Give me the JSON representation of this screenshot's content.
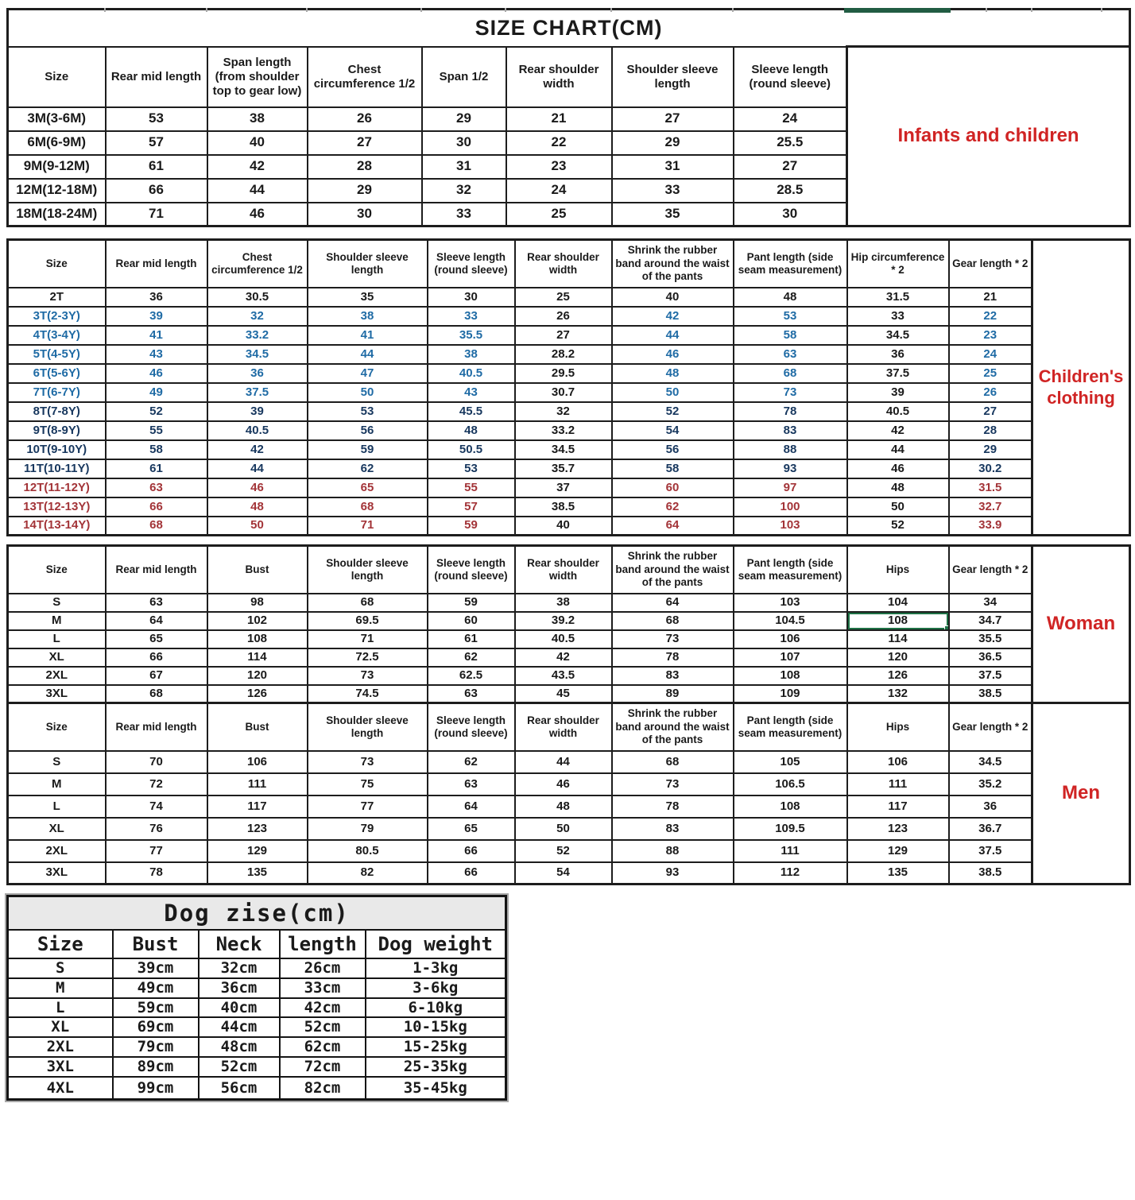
{
  "page_title": "SIZE CHART(CM)",
  "colors": {
    "black": "#1a1a1a",
    "blue": "#1f6ba5",
    "navy": "#17375e",
    "dark_red": "#a33438",
    "label_red": "#d02424",
    "selection_green": "#1e7145",
    "top_bar_green": "#215c43"
  },
  "infants": {
    "label": "Infants and children",
    "headers": [
      "Size",
      "Rear mid length",
      "Span length (from shoulder top to gear low)",
      "Chest circumference 1/2",
      "Span 1/2",
      "Rear shoulder width",
      "Shoulder sleeve length",
      "Sleeve length (round sleeve)"
    ],
    "rows": [
      [
        "3M(3-6M)",
        "53",
        "38",
        "26",
        "29",
        "21",
        "27",
        "24"
      ],
      [
        "6M(6-9M)",
        "57",
        "40",
        "27",
        "30",
        "22",
        "29",
        "25.5"
      ],
      [
        "9M(9-12M)",
        "61",
        "42",
        "28",
        "31",
        "23",
        "31",
        "27"
      ],
      [
        "12M(12-18M)",
        "66",
        "44",
        "29",
        "32",
        "24",
        "33",
        "28.5"
      ],
      [
        "18M(18-24M)",
        "71",
        "46",
        "30",
        "33",
        "25",
        "35",
        "30"
      ]
    ]
  },
  "children": {
    "label": "Children's clothing",
    "headers": [
      "Size",
      "Rear mid length",
      "Chest circumference 1/2",
      "Shoulder sleeve length",
      "Sleeve length (round sleeve)",
      "Rear shoulder width",
      "Shrink the rubber band around the waist of the pants",
      "Pant length (side seam measurement)",
      "Hip circumference * 2",
      "Gear length * 2"
    ],
    "rows": [
      [
        "2T",
        "36",
        "30.5",
        "35",
        "30",
        "25",
        "40",
        "48",
        "31.5",
        "21"
      ],
      [
        "3T(2-3Y)",
        "39",
        "32",
        "38",
        "33",
        "26",
        "42",
        "53",
        "33",
        "22"
      ],
      [
        "4T(3-4Y)",
        "41",
        "33.2",
        "41",
        "35.5",
        "27",
        "44",
        "58",
        "34.5",
        "23"
      ],
      [
        "5T(4-5Y)",
        "43",
        "34.5",
        "44",
        "38",
        "28.2",
        "46",
        "63",
        "36",
        "24"
      ],
      [
        "6T(5-6Y)",
        "46",
        "36",
        "47",
        "40.5",
        "29.5",
        "48",
        "68",
        "37.5",
        "25"
      ],
      [
        "7T(6-7Y)",
        "49",
        "37.5",
        "50",
        "43",
        "30.7",
        "50",
        "73",
        "39",
        "26"
      ],
      [
        "8T(7-8Y)",
        "52",
        "39",
        "53",
        "45.5",
        "32",
        "52",
        "78",
        "40.5",
        "27"
      ],
      [
        "9T(8-9Y)",
        "55",
        "40.5",
        "56",
        "48",
        "33.2",
        "54",
        "83",
        "42",
        "28"
      ],
      [
        "10T(9-10Y)",
        "58",
        "42",
        "59",
        "50.5",
        "34.5",
        "56",
        "88",
        "44",
        "29"
      ],
      [
        "11T(10-11Y)",
        "61",
        "44",
        "62",
        "53",
        "35.7",
        "58",
        "93",
        "46",
        "30.2"
      ],
      [
        "12T(11-12Y)",
        "63",
        "46",
        "65",
        "55",
        "37",
        "60",
        "97",
        "48",
        "31.5"
      ],
      [
        "13T(12-13Y)",
        "66",
        "48",
        "68",
        "57",
        "38.5",
        "62",
        "100",
        "50",
        "32.7"
      ],
      [
        "14T(13-14Y)",
        "68",
        "50",
        "71",
        "59",
        "40",
        "64",
        "103",
        "52",
        "33.9"
      ]
    ],
    "row_colors": [
      "black",
      "blue",
      "blue",
      "blue",
      "blue",
      "blue",
      "navy",
      "navy",
      "navy",
      "navy",
      "dark_red",
      "dark_red",
      "dark_red"
    ],
    "black_columns": [
      5,
      8
    ]
  },
  "woman": {
    "label": "Woman",
    "headers": [
      "Size",
      "Rear mid length",
      "Bust",
      "Shoulder sleeve length",
      "Sleeve length (round sleeve)",
      "Rear shoulder width",
      "Shrink the rubber band around the waist of the pants",
      "Pant length (side seam measurement)",
      "Hips",
      "Gear length * 2"
    ],
    "rows": [
      [
        "S",
        "63",
        "98",
        "68",
        "59",
        "38",
        "64",
        "103",
        "104",
        "34"
      ],
      [
        "M",
        "64",
        "102",
        "69.5",
        "60",
        "39.2",
        "68",
        "104.5",
        "108",
        "34.7"
      ],
      [
        "L",
        "65",
        "108",
        "71",
        "61",
        "40.5",
        "73",
        "106",
        "114",
        "35.5"
      ],
      [
        "XL",
        "66",
        "114",
        "72.5",
        "62",
        "42",
        "78",
        "107",
        "120",
        "36.5"
      ],
      [
        "2XL",
        "67",
        "120",
        "73",
        "62.5",
        "43.5",
        "83",
        "108",
        "126",
        "37.5"
      ],
      [
        "3XL",
        "68",
        "126",
        "74.5",
        "63",
        "45",
        "89",
        "109",
        "132",
        "38.5"
      ]
    ],
    "selected_cell": {
      "row": 1,
      "col": 8
    }
  },
  "men": {
    "label": "Men",
    "headers": [
      "Size",
      "Rear mid length",
      "Bust",
      "Shoulder sleeve length",
      "Sleeve length (round sleeve)",
      "Rear shoulder width",
      "Shrink the rubber band around the waist of the pants",
      "Pant length (side seam measurement)",
      "Hips",
      "Gear length * 2"
    ],
    "rows": [
      [
        "S",
        "70",
        "106",
        "73",
        "62",
        "44",
        "68",
        "105",
        "106",
        "34.5"
      ],
      [
        "M",
        "72",
        "111",
        "75",
        "63",
        "46",
        "73",
        "106.5",
        "111",
        "35.2"
      ],
      [
        "L",
        "74",
        "117",
        "77",
        "64",
        "48",
        "78",
        "108",
        "117",
        "36"
      ],
      [
        "XL",
        "76",
        "123",
        "79",
        "65",
        "50",
        "83",
        "109.5",
        "123",
        "36.7"
      ],
      [
        "2XL",
        "77",
        "129",
        "80.5",
        "66",
        "52",
        "88",
        "111",
        "129",
        "37.5"
      ],
      [
        "3XL",
        "78",
        "135",
        "82",
        "66",
        "54",
        "93",
        "112",
        "135",
        "38.5"
      ]
    ]
  },
  "dog": {
    "title": "Dog zise(cm)",
    "headers": [
      "Size",
      "Bust",
      "Neck",
      "length",
      "Dog weight"
    ],
    "rows": [
      [
        "S",
        "39cm",
        "32cm",
        "26cm",
        "1-3kg"
      ],
      [
        "M",
        "49cm",
        "36cm",
        "33cm",
        "3-6kg"
      ],
      [
        "L",
        "59cm",
        "40cm",
        "42cm",
        "6-10kg"
      ],
      [
        "XL",
        "69cm",
        "44cm",
        "52cm",
        "10-15kg"
      ],
      [
        "2XL",
        "79cm",
        "48cm",
        "62cm",
        "15-25kg"
      ],
      [
        "3XL",
        "89cm",
        "52cm",
        "72cm",
        "25-35kg"
      ],
      [
        "4XL",
        "99cm",
        "56cm",
        "82cm",
        "35-45kg"
      ]
    ]
  }
}
